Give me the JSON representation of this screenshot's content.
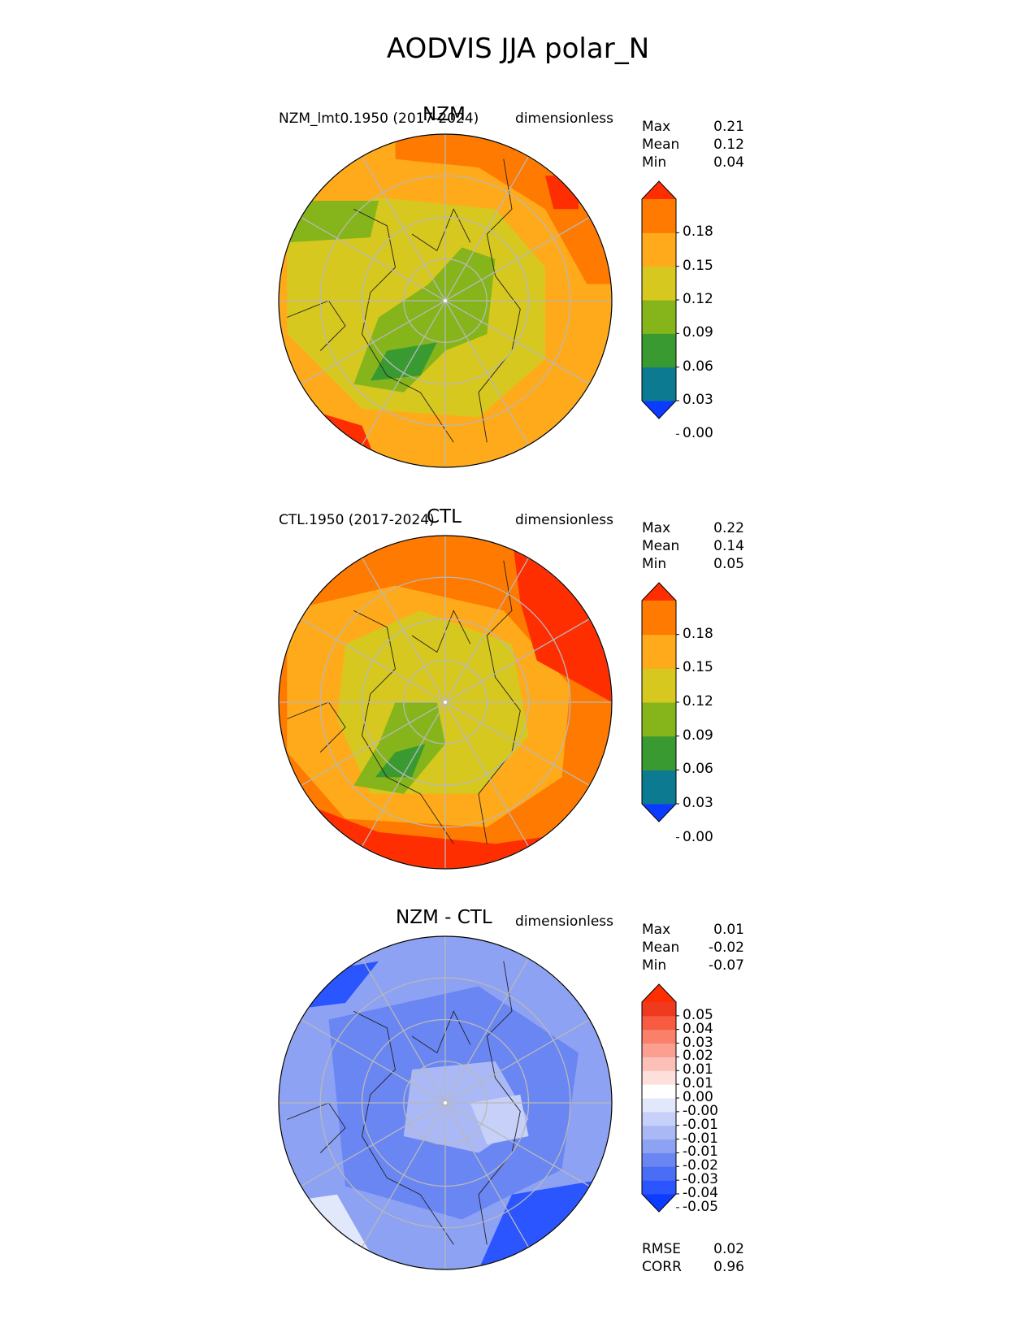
{
  "title": "AODVIS JJA polar_N",
  "colors": {
    "seq": [
      "#0a3bff",
      "#0c7a90",
      "#3a9a32",
      "#85b51a",
      "#d6c81f",
      "#ffaa1a",
      "#ff7a00",
      "#ff2e00"
    ],
    "div": [
      "#0b3cff",
      "#2a55ff",
      "#4a6df6",
      "#6a86f3",
      "#8ea2f4",
      "#aab9f6",
      "#c6d0f8",
      "#e2e8fb",
      "#ffffff",
      "#fde0dc",
      "#fcc0b8",
      "#fba090",
      "#fa806a",
      "#f75c42",
      "#f03a20",
      "#ff2e00"
    ]
  },
  "panels": [
    {
      "id": "test",
      "title": "NZM",
      "left_title": "NZM_lmt0.1950 (2017-2024)",
      "right_title": "dimensionless",
      "stats": {
        "Max": "0.21",
        "Mean": "0.12",
        "Min": "0.04"
      },
      "colorbar_ticks": [
        "0.18",
        "0.15",
        "0.12",
        "0.09",
        "0.06",
        "0.03",
        "0.00"
      ]
    },
    {
      "id": "ref",
      "title": "CTL",
      "left_title": "CTL.1950 (2017-2024)",
      "right_title": "dimensionless",
      "stats": {
        "Max": "0.22",
        "Mean": "0.14",
        "Min": "0.05"
      },
      "colorbar_ticks": [
        "0.18",
        "0.15",
        "0.12",
        "0.09",
        "0.06",
        "0.03",
        "0.00"
      ]
    },
    {
      "id": "diff",
      "title": "NZM - CTL",
      "left_title": "",
      "right_title": "dimensionless",
      "stats": {
        "Max": "0.01",
        "Mean": "-0.02",
        "Min": "-0.07"
      },
      "colorbar_ticks": [
        "0.05",
        "0.04",
        "0.03",
        "0.02",
        "0.01",
        "0.01",
        "0.00",
        "-0.00",
        "-0.01",
        "-0.01",
        "-0.01",
        "-0.02",
        "-0.03",
        "-0.04",
        "-0.05"
      ],
      "metrics": {
        "RMSE": "0.02",
        "CORR": "0.96"
      }
    }
  ]
}
